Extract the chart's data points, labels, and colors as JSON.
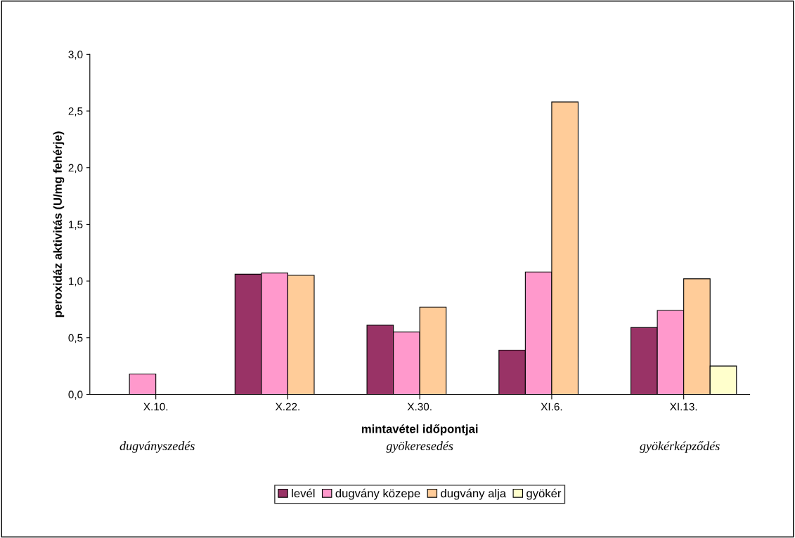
{
  "chart_data": {
    "type": "bar",
    "xlabel": "mintavétel időpontjai",
    "ylabel": "peroxidáz aktivitás (U/mg fehérje)",
    "categories": [
      "X.10.",
      "X.22.",
      "X.30.",
      "XI.6.",
      "XI.13."
    ],
    "series": [
      {
        "name": "levél",
        "color": "#993366",
        "values": [
          null,
          1.06,
          0.61,
          0.39,
          0.59
        ]
      },
      {
        "name": "dugvány közepe",
        "color": "#ff99cc",
        "values": [
          0.18,
          1.07,
          0.55,
          1.08,
          0.74
        ]
      },
      {
        "name": "dugvány alja",
        "color": "#ffcc99",
        "values": [
          null,
          1.05,
          0.77,
          2.58,
          1.02
        ]
      },
      {
        "name": "gyökér",
        "color": "#ffffcc",
        "values": [
          null,
          null,
          null,
          null,
          0.25
        ]
      }
    ],
    "ylim": [
      0,
      3
    ],
    "yticks": [
      {
        "value": 0,
        "label": "0,0"
      },
      {
        "value": 0.5,
        "label": "0,5"
      },
      {
        "value": 1,
        "label": "1,0"
      },
      {
        "value": 1.5,
        "label": "1,5"
      },
      {
        "value": 2,
        "label": "2,0"
      },
      {
        "value": 2.5,
        "label": "2,5"
      },
      {
        "value": 3,
        "label": "3,0"
      }
    ],
    "grid": false,
    "legend": "bottom",
    "annotations": [
      "dugványszedés",
      "gyökeresedés",
      "gyökérképződés"
    ]
  }
}
